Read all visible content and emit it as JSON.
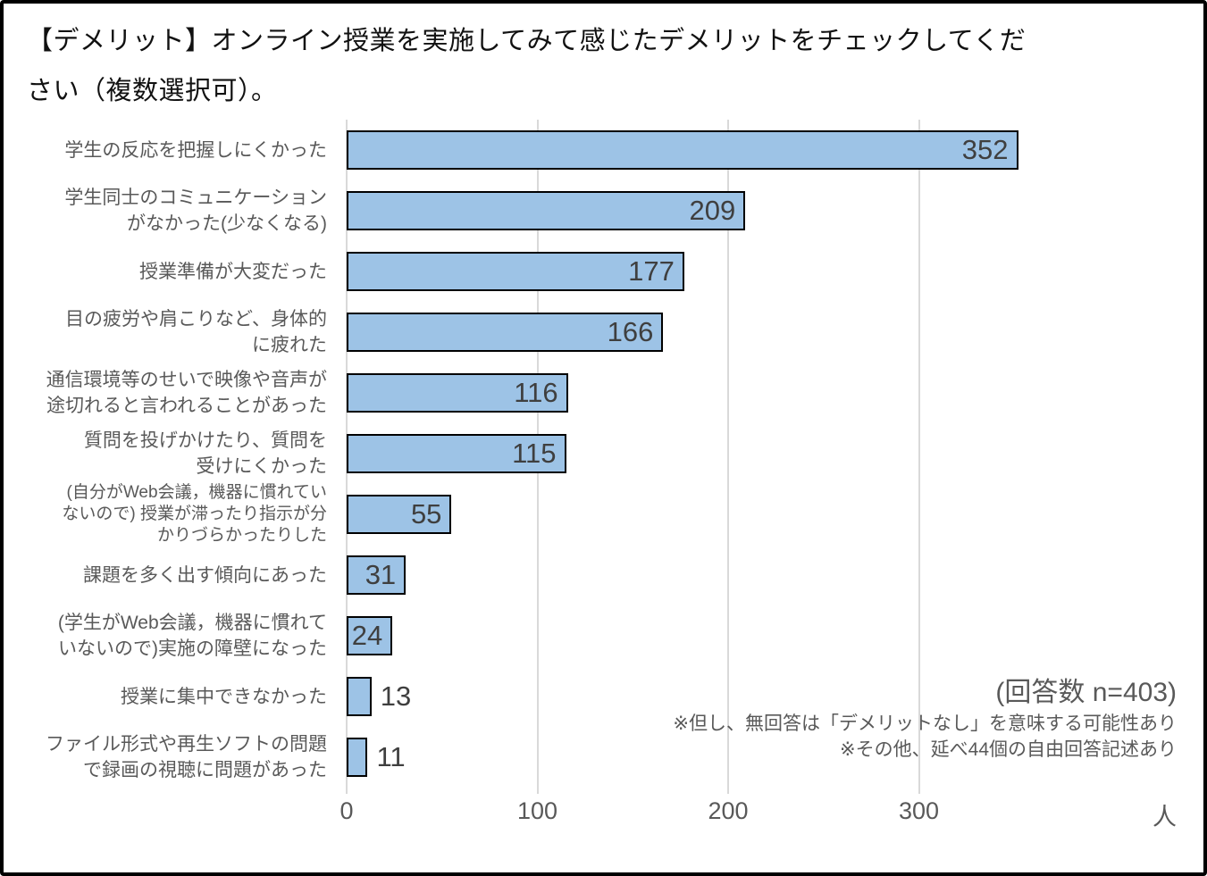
{
  "chart_data": {
    "type": "bar",
    "orientation": "horizontal",
    "title": "【デメリット】オンライン授業を実施してみて感じたデメリットをチェックしてください（複数選択可）。",
    "unit": "人",
    "categories": [
      "学生の反応を把握しにくかった",
      "学生同士のコミュニケーションがなかった(少なくなる)",
      "授業準備が大変だった",
      "目の疲労や肩こりなど、身体的に疲れた",
      "通信環境等のせいで映像や音声が途切れると言われることがあった",
      "質問を投げかけたり、質問を受けにくかった",
      "(自分がWeb会議，機器に慣れていないので) 授業が滞ったり指示が分かりづらかったりした",
      "課題を多く出す傾向にあった",
      "(学生がWeb会議，機器に慣れていないので)実施の障壁になった",
      "授業に集中できなかった",
      "ファイル形式や再生ソフトの問題で録画の視聴に問題があった"
    ],
    "categories_wrapped": [
      "学生の反応を把握しにくかった",
      "学生同士のコミュニケーション\nがなかった(少なくなる)",
      "授業準備が大変だった",
      "目の疲労や肩こりなど、身体的\nに疲れた",
      "通信環境等のせいで映像や音声が\n途切れると言われることがあった",
      "質問を投げかけたり、質問を\n受けにくかった",
      "(自分がWeb会議，機器に慣れてい\nないので) 授業が滞ったり指示が分\nかりづらかったりした",
      "課題を多く出す傾向にあった",
      "(学生がWeb会議，機器に慣れて\nいないので)実施の障壁になった",
      "授業に集中できなかった",
      "ファイル形式や再生ソフトの問題\nで録画の視聴に問題があった"
    ],
    "values": [
      352,
      209,
      177,
      166,
      116,
      115,
      55,
      31,
      24,
      13,
      11
    ],
    "data_labels": true,
    "xticks": [
      0,
      100,
      200,
      300
    ],
    "xlim": [
      0,
      442
    ],
    "grid": true,
    "legend": false,
    "annotations": {
      "response_count": "(回答数 n=403)",
      "note1": "※但し、無回答は「デメリットなし」を意味する可能性あり",
      "note2": "※その他、延べ44個の自由回答記述あり"
    },
    "colors": {
      "bar_fill": "#9DC3E6",
      "bar_border": "#000000",
      "gridline": "#D9D9D9",
      "axis_text": "#595959",
      "label_text": "#595959",
      "value_text": "#3F3F3F",
      "title_text": "#111111"
    }
  }
}
